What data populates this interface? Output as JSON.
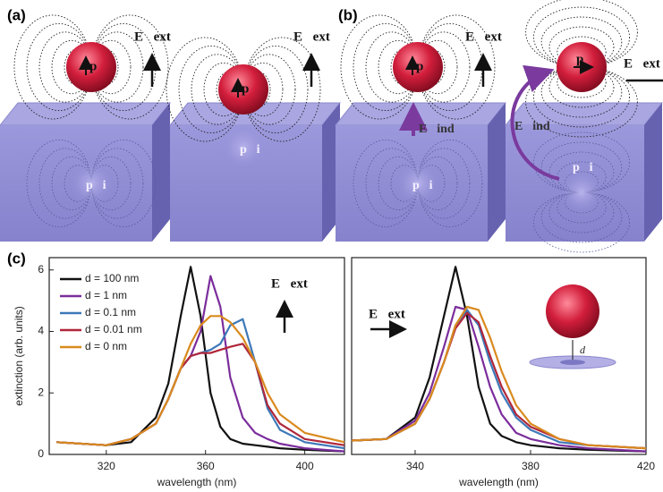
{
  "panels": {
    "a": "(a)",
    "b": "(b)",
    "c": "(c)"
  },
  "diagram": {
    "e_ext": "E⃗ext",
    "p": "p⃗",
    "p_i": "p⃗i",
    "e_ind": "E⃗ind"
  },
  "chart_data": [
    {
      "type": "line",
      "xlabel": "wavelength (nm)",
      "ylabel": "extinction (arb. units)",
      "annotation": "E⃗ext",
      "x": [
        300,
        320,
        330,
        340,
        345,
        350,
        354,
        358,
        362,
        366,
        370,
        375,
        380,
        385,
        390,
        400,
        416
      ],
      "xlim": [
        297,
        416
      ],
      "xticks": [
        320,
        360,
        400
      ],
      "ylim": [
        0,
        6.4
      ],
      "yticks": [
        0,
        2,
        4,
        6
      ],
      "series": [
        {
          "name": "d = 100 nm",
          "color": "#111111",
          "values": [
            0.4,
            0.3,
            0.4,
            1.2,
            2.3,
            4.5,
            6.1,
            4.5,
            2.0,
            0.9,
            0.5,
            0.35,
            0.3,
            0.25,
            0.2,
            0.15,
            0.1
          ]
        },
        {
          "name": "d = 1 nm",
          "color": "#7b2d9c",
          "values": [
            0.4,
            0.3,
            0.5,
            1.0,
            1.8,
            2.8,
            3.2,
            4.0,
            5.8,
            4.8,
            2.5,
            1.2,
            0.7,
            0.5,
            0.35,
            0.2,
            0.1
          ]
        },
        {
          "name": "d = 0.1 nm",
          "color": "#3d78b8",
          "values": [
            0.4,
            0.3,
            0.5,
            1.0,
            1.8,
            2.8,
            3.2,
            3.3,
            3.4,
            3.6,
            4.2,
            4.4,
            3.0,
            1.5,
            0.8,
            0.4,
            0.2
          ]
        },
        {
          "name": "d = 0.01 nm",
          "color": "#b0263a",
          "values": [
            0.4,
            0.3,
            0.5,
            1.0,
            1.8,
            2.8,
            3.2,
            3.3,
            3.3,
            3.4,
            3.5,
            3.6,
            3.0,
            1.6,
            1.0,
            0.5,
            0.3
          ]
        },
        {
          "name": "d = 0 nm",
          "color": "#d98a1e",
          "values": [
            0.4,
            0.3,
            0.5,
            1.0,
            1.8,
            2.8,
            3.6,
            4.2,
            4.5,
            4.5,
            4.3,
            3.8,
            3.0,
            2.0,
            1.3,
            0.7,
            0.4
          ]
        }
      ]
    },
    {
      "type": "line",
      "xlabel": "wavelength (nm)",
      "annotation": "E⃗ext",
      "inset_label": "d",
      "x": [
        318,
        330,
        340,
        345,
        350,
        354,
        358,
        362,
        366,
        370,
        375,
        380,
        390,
        400,
        420
      ],
      "xlim": [
        318,
        420
      ],
      "xticks": [
        340,
        380,
        420
      ],
      "ylim": [
        0,
        6.4
      ],
      "series": [
        {
          "color": "#111111",
          "values": [
            0.45,
            0.5,
            1.2,
            2.5,
            4.5,
            6.1,
            4.5,
            2.2,
            1.0,
            0.6,
            0.4,
            0.3,
            0.2,
            0.15,
            0.1
          ]
        },
        {
          "color": "#7b2d9c",
          "values": [
            0.45,
            0.5,
            1.1,
            2.0,
            3.5,
            4.8,
            4.7,
            3.5,
            2.2,
            1.3,
            0.7,
            0.5,
            0.3,
            0.2,
            0.1
          ]
        },
        {
          "color": "#3d78b8",
          "values": [
            0.45,
            0.5,
            1.0,
            1.8,
            3.0,
            4.2,
            4.7,
            4.2,
            3.0,
            2.0,
            1.2,
            0.8,
            0.4,
            0.3,
            0.2
          ]
        },
        {
          "color": "#b0263a",
          "values": [
            0.45,
            0.5,
            1.0,
            1.8,
            3.0,
            4.1,
            4.6,
            4.3,
            3.2,
            2.2,
            1.3,
            0.9,
            0.5,
            0.3,
            0.2
          ]
        },
        {
          "color": "#d98a1e",
          "values": [
            0.45,
            0.5,
            1.0,
            1.8,
            3.0,
            4.2,
            4.8,
            4.7,
            3.8,
            2.7,
            1.6,
            1.0,
            0.5,
            0.3,
            0.2
          ]
        }
      ]
    }
  ]
}
